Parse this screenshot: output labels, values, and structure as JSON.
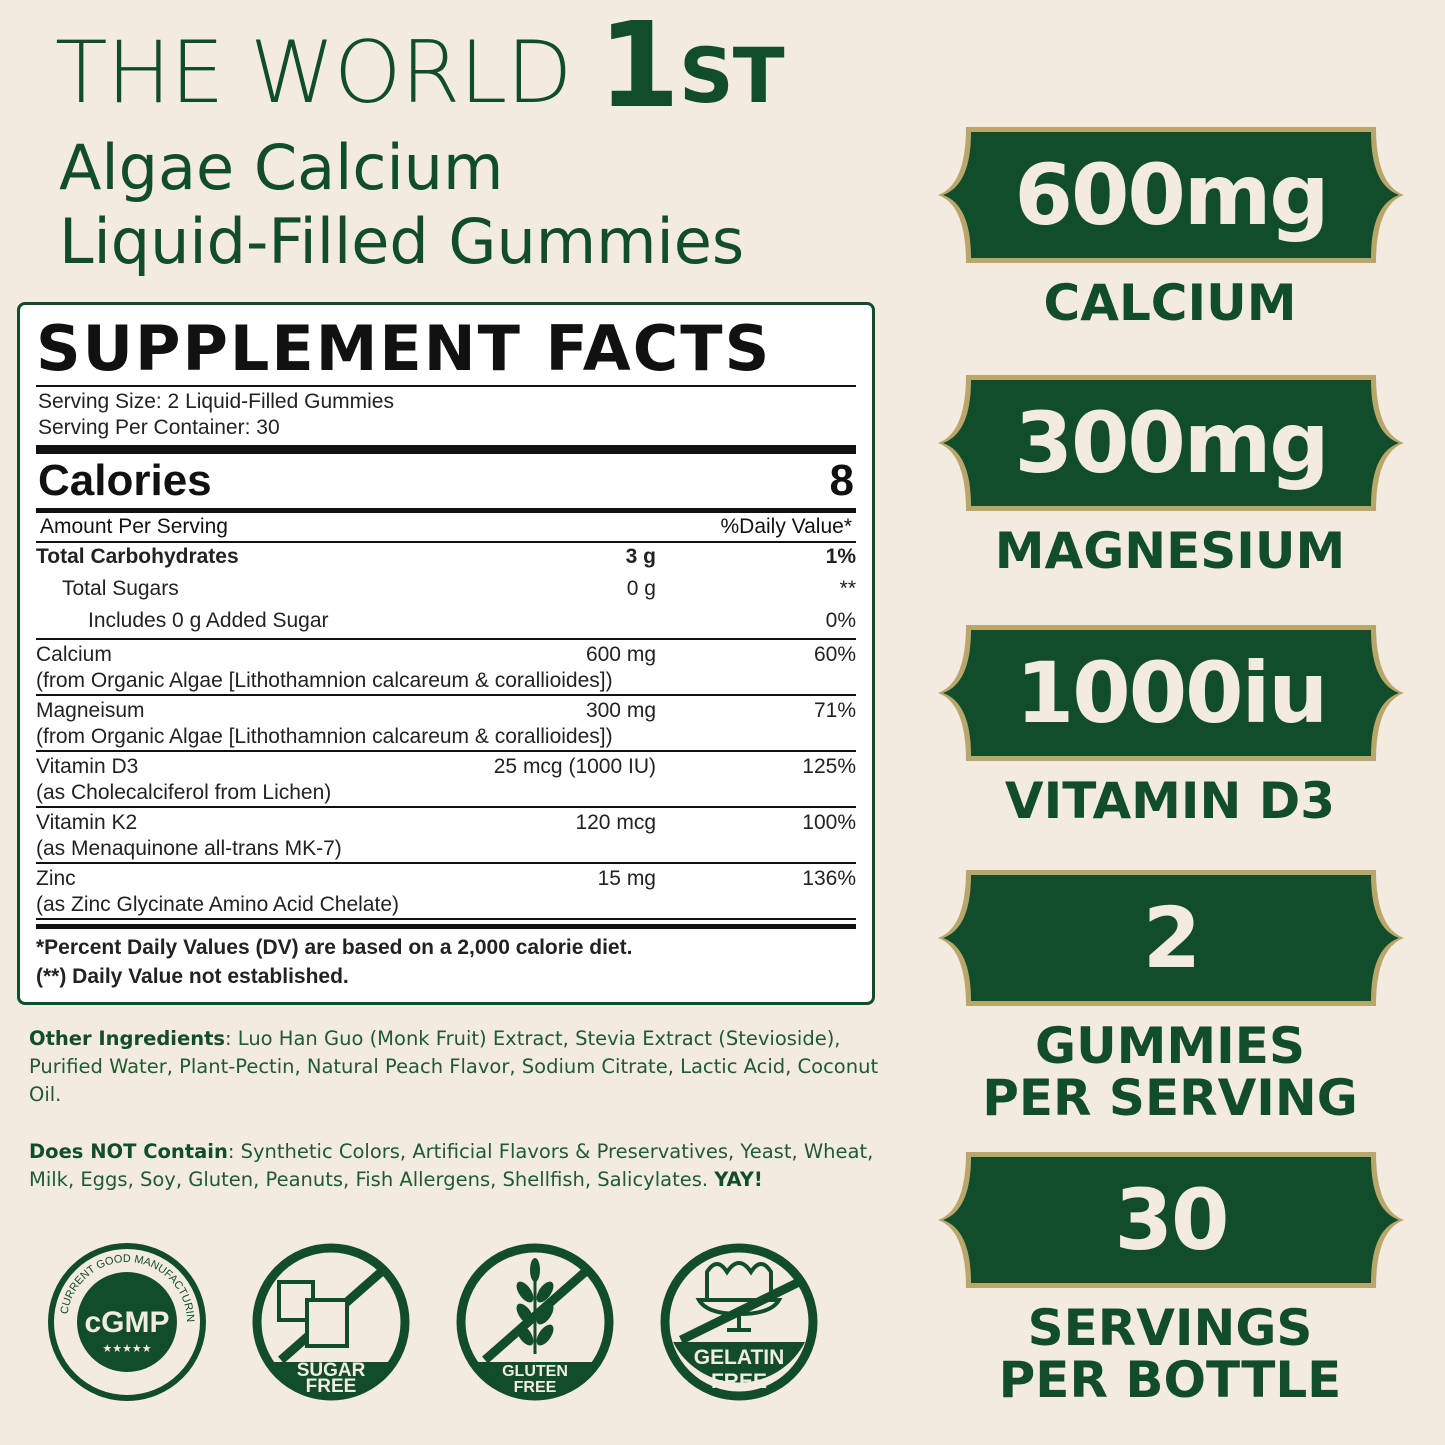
{
  "headline": {
    "line1": "THE WORLD",
    "num": "1",
    "suffix": "ST",
    "line2": "Algae Calcium",
    "line3": "Liquid-Filled Gummies"
  },
  "facts": {
    "title": "SUPPLEMENT FACTS",
    "serving_size": "Serving Size: 2 Liquid-Filled Gummies",
    "servings": "Serving Per Container: 30",
    "calories_label": "Calories",
    "calories": "8",
    "amount_per_serving": "Amount Per Serving",
    "daily_value": "%Daily Value*",
    "carbs": [
      {
        "name": "Total Carbohydrates",
        "amount": "3 g",
        "dv": "1%"
      },
      {
        "name": "Total Sugars",
        "amount": "0 g",
        "dv": "**"
      },
      {
        "name": "Includes 0 g Added Sugar",
        "amount": "",
        "dv": "0%"
      }
    ],
    "nutrients": [
      {
        "name": "Calcium",
        "amount": "600 mg",
        "dv": "60%",
        "source": "(from Organic Algae [Lithothamnion calcareum & corallioides])"
      },
      {
        "name": "Magneisum",
        "amount": "300 mg",
        "dv": "71%",
        "source": "(from Organic Algae [Lithothamnion calcareum & corallioides])"
      },
      {
        "name": "Vitamin D3",
        "amount": "25 mcg (1000 IU)",
        "dv": "125%",
        "source": "(as Cholecalciferol from Lichen)"
      },
      {
        "name": "Vitamin K2",
        "amount": "120 mcg",
        "dv": "100%",
        "source": "(as Menaquinone all-trans MK-7)"
      },
      {
        "name": "Zinc",
        "amount": "15 mg",
        "dv": "136%",
        "source": "(as Zinc Glycinate Amino Acid Chelate)"
      }
    ],
    "footnote1": "*Percent Daily Values (DV) are based on a 2,000 calorie diet.",
    "footnote2": "(**) Daily Value not established."
  },
  "other_ingredients": {
    "label": "Other Ingredients",
    "text": ": Luo Han Guo (Monk Fruit) Extract, Stevia Extract (Stevioside), Purified Water, Plant-Pectin, Natural Peach Flavor, Sodium Citrate, Lactic Acid, Coconut Oil."
  },
  "does_not_contain": {
    "label": "Does NOT Contain",
    "text": ": Synthetic Colors, Artificial Flavors & Preservatives, Yeast, Wheat, Milk, Eggs, Soy, Gluten, Peanuts, Fish Allergens, Shellfish, Salicylates. ",
    "yay": "YAY!"
  },
  "badges": {
    "cgmp": "cGMP",
    "cgmp_ring": "CURRENT GOOD MANUFACTURING PRACTICE",
    "cgmp_stars": "★★★★★",
    "sugar1": "SUGAR",
    "sugar2": "FREE",
    "gluten1": "GLUTEN",
    "gluten2": "FREE",
    "gelatin1": "GELATIN",
    "gelatin2": "FREE"
  },
  "highlights": [
    {
      "value": "600mg",
      "label1": "CALCIUM",
      "label2": ""
    },
    {
      "value": "300mg",
      "label1": "MAGNESIUM",
      "label2": ""
    },
    {
      "value": "1000iu",
      "label1": "VITAMIN D3",
      "label2": ""
    },
    {
      "value": "2",
      "label1": "GUMMIES",
      "label2": "PER SERVING"
    },
    {
      "value": "30",
      "label1": "SERVINGS",
      "label2": "PER BOTTLE"
    }
  ],
  "colors": {
    "background": "#f3ebdf",
    "green": "#124d2b",
    "gold": "#b9a66a"
  }
}
